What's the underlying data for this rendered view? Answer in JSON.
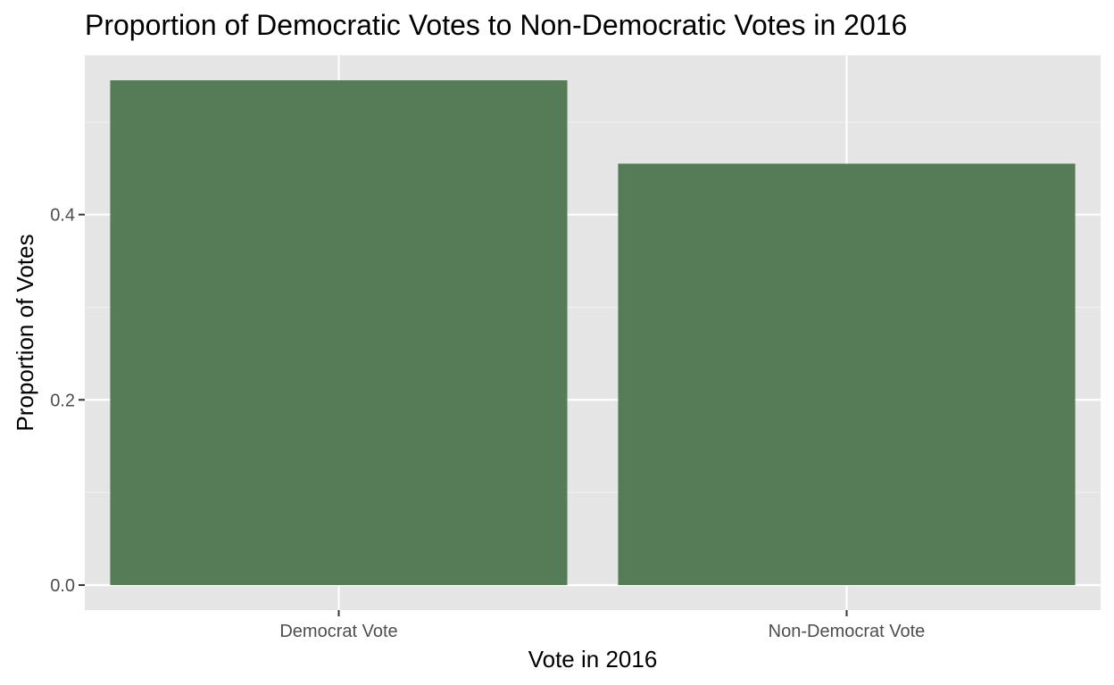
{
  "chart_data": {
    "type": "bar",
    "title": "Proportion of Democratic Votes to Non-Democratic Votes in 2016",
    "xlabel": "Vote in 2016",
    "ylabel": "Proportion of Votes",
    "categories": [
      "Democrat Vote",
      "Non-Democrat Vote"
    ],
    "values": [
      0.545,
      0.455
    ],
    "ylim": [
      -0.027,
      0.572
    ],
    "yticks": [
      0.0,
      0.2,
      0.4
    ],
    "ytick_labels": [
      "0.0",
      "0.2",
      "0.4"
    ],
    "grid": true,
    "legend": "none",
    "colors": {
      "bar": "#567b57",
      "panel_background": "#e5e5e5",
      "grid_major": "#ffffff",
      "grid_minor": "#f2f2f2",
      "tick_text": "#4d4d4d",
      "tick_mark": "#333333"
    }
  }
}
